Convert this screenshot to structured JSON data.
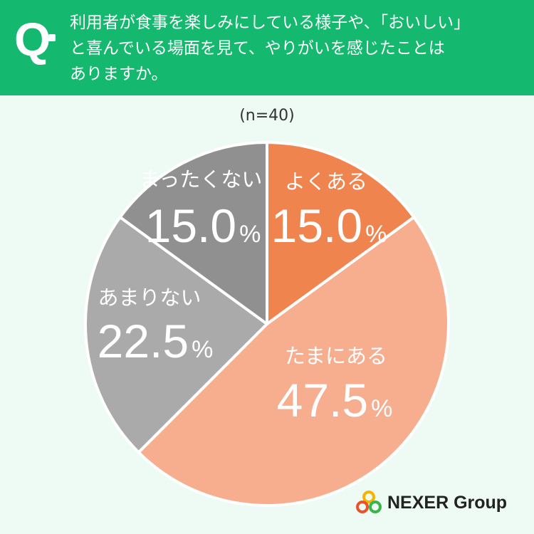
{
  "header": {
    "q_mark": "Q",
    "question_lines": [
      "利用者が食事を楽しみにしている様子や、「おいしい」",
      "と喜んでいる場面を見て、やりがいを感じたことは",
      "ありますか。"
    ],
    "background_color": "#14b86e"
  },
  "sample_label": "(n=40)",
  "chart_data": {
    "type": "pie",
    "title": "",
    "n": 40,
    "slices": [
      {
        "label": "よくある",
        "value": 15.0,
        "value_text": "15.0",
        "unit": "%",
        "color": "#f0844f"
      },
      {
        "label": "たまにある",
        "value": 47.5,
        "value_text": "47.5",
        "unit": "%",
        "color": "#f6ae8e"
      },
      {
        "label": "あまりない",
        "value": 22.5,
        "value_text": "22.5",
        "unit": "%",
        "color": "#aaaaaa"
      },
      {
        "label": "まったくない",
        "value": 15.0,
        "value_text": "15.0",
        "unit": "%",
        "color": "#909090"
      }
    ],
    "start": "12 o'clock",
    "direction": "clockwise"
  },
  "logo": {
    "text": "NEXER Group",
    "icon": "nexer-rings-icon"
  }
}
